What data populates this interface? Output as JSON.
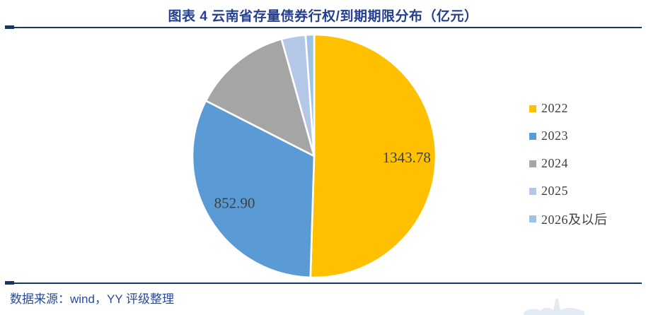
{
  "header": {
    "title": "图表 4  云南省存量债券行权/到期期限分布（亿元）"
  },
  "footer": {
    "source_note": "数据来源：wind，YY 评级整理"
  },
  "colors": {
    "title_text": "#243E90",
    "rule": "#17375E",
    "source_text": "#2B4A9B",
    "label_text": "#404040",
    "slice_border": "#FFFFFF",
    "watermark": "#AFC7E2"
  },
  "chart_data": {
    "type": "pie",
    "title": "图表 4  云南省存量债券行权/到期期限分布（亿元）",
    "unit": "亿元",
    "legend_position": "right",
    "start_angle_deg": 0,
    "direction": "clockwise",
    "slices": [
      {
        "label": "2022",
        "value": 1343.78,
        "value_label": "1343.78",
        "color": "#FFC000",
        "estimated": false
      },
      {
        "label": "2023",
        "value": 852.9,
        "value_label": "852.90",
        "color": "#5B9BD5",
        "estimated": false
      },
      {
        "label": "2024",
        "value": 350,
        "value_label": "",
        "color": "#A5A5A5",
        "estimated": true
      },
      {
        "label": "2025",
        "value": 85,
        "value_label": "",
        "color": "#B4C7E7",
        "estimated": true
      },
      {
        "label": "2026及以后",
        "value": 30,
        "value_label": "",
        "color": "#9DC3E6",
        "estimated": true
      }
    ]
  }
}
